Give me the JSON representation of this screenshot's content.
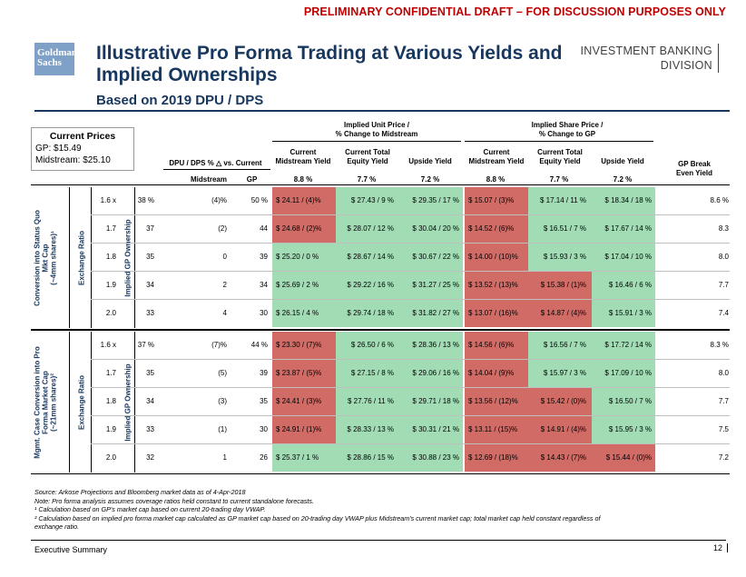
{
  "banner": "PRELIMINARY CONFIDENTIAL DRAFT – FOR DISCUSSION PURPOSES ONLY",
  "logo": {
    "line1": "Goldman",
    "line2": "Sachs"
  },
  "title": "Illustrative Pro Forma Trading at Various Yields and Implied Ownerships",
  "subtitle": "Based on 2019 DPU / DPS",
  "division": {
    "line1": "INVESTMENT BANKING",
    "line2": "DIVISION"
  },
  "current_prices": {
    "heading": "Current Prices",
    "gp": "GP: $15.49",
    "midstream": "Midstream: $25.10"
  },
  "headers": {
    "implied_unit_price": "Implied Unit Price /",
    "implied_unit_price_2": "% Change to Midstream",
    "implied_share_price": "Implied Share Price /",
    "implied_share_price_2": "% Change to GP",
    "dpu_dps": "DPU / DPS % △ vs. Current",
    "midstream": "Midstream",
    "gp": "GP",
    "current_midstream_yield_1": "Current",
    "current_midstream_yield_2": "Midstream Yield",
    "current_total_equity_yield_1": "Current Total",
    "current_total_equity_yield_2": "Equity Yield",
    "upside_yield": "Upside Yield",
    "gp_break_even_1": "GP Break",
    "gp_break_even_2": "Even Yield",
    "yields": [
      "8.8 %",
      "7.7 %",
      "7.2 %",
      "8.8 %",
      "7.7 %",
      "7.2 %"
    ]
  },
  "sections": [
    {
      "side_label_1": "Conversion into Status Quo",
      "side_label_2": "Mkt Cap",
      "side_label_3": "(~4mm shares)¹",
      "exchange_ratio_label": "Exchange Ratio",
      "gp_ownership_label": "Implied GP Ownership",
      "rows": [
        {
          "ratio": "1.6 x",
          "own": "38 %",
          "mid": "(4)%",
          "gp": "50 %",
          "c": [
            [
              "$ 24.11 / (4)%",
              "r"
            ],
            [
              "$ 27.43 / 9 %",
              "g"
            ],
            [
              "$ 29.35 / 17 %",
              "g"
            ],
            [
              "$ 15.07 / (3)%",
              "r"
            ],
            [
              "$ 17.14 / 11 %",
              "g"
            ],
            [
              "$ 18.34 / 18 %",
              "g"
            ]
          ],
          "be": "8.6 %"
        },
        {
          "ratio": "1.7",
          "own": "37",
          "mid": "(2)",
          "gp": "44",
          "c": [
            [
              "$ 24.68 / (2)%",
              "r"
            ],
            [
              "$ 28.07 / 12 %",
              "g"
            ],
            [
              "$ 30.04 / 20 %",
              "g"
            ],
            [
              "$ 14.52 / (6)%",
              "r"
            ],
            [
              "$ 16.51 / 7 %",
              "g"
            ],
            [
              "$ 17.67 / 14 %",
              "g"
            ]
          ],
          "be": "8.3"
        },
        {
          "ratio": "1.8",
          "own": "35",
          "mid": "0",
          "gp": "39",
          "c": [
            [
              "$ 25.20 / 0 %",
              "g"
            ],
            [
              "$ 28.67 / 14 %",
              "g"
            ],
            [
              "$ 30.67 / 22 %",
              "g"
            ],
            [
              "$ 14.00 / (10)%",
              "r"
            ],
            [
              "$ 15.93 / 3 %",
              "g"
            ],
            [
              "$ 17.04 / 10 %",
              "g"
            ]
          ],
          "be": "8.0"
        },
        {
          "ratio": "1.9",
          "own": "34",
          "mid": "2",
          "gp": "34",
          "c": [
            [
              "$ 25.69 / 2 %",
              "g"
            ],
            [
              "$ 29.22 / 16 %",
              "g"
            ],
            [
              "$ 31.27 / 25 %",
              "g"
            ],
            [
              "$ 13.52 / (13)%",
              "r"
            ],
            [
              "$ 15.38 / (1)%",
              "r"
            ],
            [
              "$ 16.46 / 6 %",
              "g"
            ]
          ],
          "be": "7.7"
        },
        {
          "ratio": "2.0",
          "own": "33",
          "mid": "4",
          "gp": "30",
          "c": [
            [
              "$ 26.15 / 4 %",
              "g"
            ],
            [
              "$ 29.74 / 18 %",
              "g"
            ],
            [
              "$ 31.82 / 27 %",
              "g"
            ],
            [
              "$ 13.07 / (16)%",
              "r"
            ],
            [
              "$ 14.87 / (4)%",
              "r"
            ],
            [
              "$ 15.91 / 3 %",
              "g"
            ]
          ],
          "be": "7.4"
        }
      ]
    },
    {
      "side_label_1": "Mgmt. Case Conversion into Pro",
      "side_label_2": "Forma Market Cap",
      "side_label_3": "(~21mm shares)²",
      "exchange_ratio_label": "Exchange Ratio",
      "gp_ownership_label": "Implied GP Ownership",
      "rows": [
        {
          "ratio": "1.6 x",
          "own": "37 %",
          "mid": "(7)%",
          "gp": "44 %",
          "c": [
            [
              "$ 23.30 / (7)%",
              "r"
            ],
            [
              "$ 26.50 / 6 %",
              "g"
            ],
            [
              "$ 28.36 / 13 %",
              "g"
            ],
            [
              "$ 14.56 / (6)%",
              "r"
            ],
            [
              "$ 16.56 / 7 %",
              "g"
            ],
            [
              "$ 17.72 / 14 %",
              "g"
            ]
          ],
          "be": "8.3 %"
        },
        {
          "ratio": "1.7",
          "own": "35",
          "mid": "(5)",
          "gp": "39",
          "c": [
            [
              "$ 23.87 / (5)%",
              "r"
            ],
            [
              "$ 27.15 / 8 %",
              "g"
            ],
            [
              "$ 29.06 / 16 %",
              "g"
            ],
            [
              "$ 14.04 / (9)%",
              "r"
            ],
            [
              "$ 15.97 / 3 %",
              "g"
            ],
            [
              "$ 17.09 / 10 %",
              "g"
            ]
          ],
          "be": "8.0"
        },
        {
          "ratio": "1.8",
          "own": "34",
          "mid": "(3)",
          "gp": "35",
          "c": [
            [
              "$ 24.41 / (3)%",
              "r"
            ],
            [
              "$ 27.76 / 11 %",
              "g"
            ],
            [
              "$ 29.71 / 18 %",
              "g"
            ],
            [
              "$ 13.56 / (12)%",
              "r"
            ],
            [
              "$ 15.42 / (0)%",
              "r"
            ],
            [
              "$ 16.50 / 7 %",
              "g"
            ]
          ],
          "be": "7.7"
        },
        {
          "ratio": "1.9",
          "own": "33",
          "mid": "(1)",
          "gp": "30",
          "c": [
            [
              "$ 24.91 / (1)%",
              "r"
            ],
            [
              "$ 28.33 / 13 %",
              "g"
            ],
            [
              "$ 30.31 / 21 %",
              "g"
            ],
            [
              "$ 13.11 / (15)%",
              "r"
            ],
            [
              "$ 14.91 / (4)%",
              "r"
            ],
            [
              "$ 15.95 / 3 %",
              "g"
            ]
          ],
          "be": "7.5"
        },
        {
          "ratio": "2.0",
          "own": "32",
          "mid": "1",
          "gp": "26",
          "c": [
            [
              "$ 25.37 / 1 %",
              "g"
            ],
            [
              "$ 28.86 / 15 %",
              "g"
            ],
            [
              "$ 30.88 / 23 %",
              "g"
            ],
            [
              "$ 12.69 / (18)%",
              "r"
            ],
            [
              "$ 14.43 / (7)%",
              "r"
            ],
            [
              "$ 15.44 / (0)%",
              "r"
            ]
          ],
          "be": "7.2"
        }
      ]
    }
  ],
  "footnotes": [
    "Source: Arkose Projections and Bloomberg market data as of 4-Apr-2018",
    "Note: Pro forma analysis assumes coverage ratios held constant to current standalone forecasts.",
    "¹ Calculation based on GP's market cap based on current 20-trading day VWAP.",
    "² Calculation based on implied pro forma market cap calculated as GP market cap based on 20-trading day VWAP plus Midstream's current market cap; total market cap held constant regardless of",
    "   exchange ratio."
  ],
  "footer": {
    "left": "Executive Summary",
    "page": "12"
  }
}
